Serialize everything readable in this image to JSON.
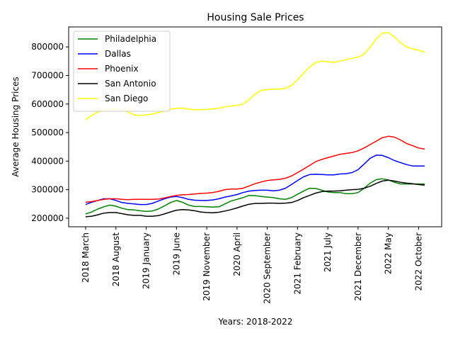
{
  "chart_data": {
    "type": "line",
    "title": "Housing Sale Prices",
    "xlabel": "Years: 2018-2022",
    "ylabel": "Average Housing Prices",
    "x": [
      "2018 March",
      "2018 April",
      "2018 May",
      "2018 June",
      "2018 July",
      "2018 August",
      "2018 September",
      "2018 October",
      "2018 November",
      "2018 December",
      "2019 January",
      "2019 February",
      "2019 March",
      "2019 April",
      "2019 May",
      "2019 June",
      "2019 July",
      "2019 August",
      "2019 September",
      "2019 October",
      "2019 November",
      "2019 December",
      "2020 January",
      "2020 February",
      "2020 March",
      "2020 April",
      "2020 May",
      "2020 June",
      "2020 July",
      "2020 August",
      "2020 September",
      "2020 October",
      "2020 November",
      "2020 December",
      "2021 January",
      "2021 February",
      "2021 March",
      "2021 April",
      "2021 May",
      "2021 June",
      "2021 July",
      "2021 August",
      "2021 September",
      "2021 October",
      "2021 November",
      "2021 December",
      "2022 January",
      "2022 February",
      "2022 March",
      "2022 April",
      "2022 May",
      "2022 June",
      "2022 July",
      "2022 August",
      "2022 September",
      "2022 October",
      "2022 November"
    ],
    "x_tick_labels": [
      "2018 March",
      "2018 August",
      "2019 January",
      "2019 June",
      "2019 November",
      "2020 April",
      "2020 September",
      "2021 February",
      "2021 July",
      "2021 December",
      "2022 May",
      "2022 October"
    ],
    "x_tick_step": 5,
    "ylim": [
      170000,
      870000
    ],
    "y_ticks": [
      200000,
      300000,
      400000,
      500000,
      600000,
      700000,
      800000
    ],
    "y_tick_labels": [
      "200000",
      "300000",
      "400000",
      "500000",
      "600000",
      "700000",
      "800000"
    ],
    "grid": false,
    "legend": "top-left",
    "series": [
      {
        "name": "Philadelphia",
        "color": "#008000",
        "values": [
          215000,
          222000,
          232000,
          240000,
          246000,
          242000,
          235000,
          230000,
          229000,
          226000,
          224000,
          225000,
          232000,
          243000,
          255000,
          262000,
          256000,
          246000,
          241000,
          241000,
          240000,
          239000,
          240000,
          250000,
          260000,
          266000,
          272000,
          280000,
          279000,
          276000,
          274000,
          272000,
          268000,
          266000,
          272000,
          284000,
          295000,
          305000,
          304000,
          298000,
          292000,
          290000,
          290000,
          286000,
          286000,
          290000,
          305000,
          323000,
          335000,
          338000,
          334000,
          326000,
          320000,
          320000,
          320000,
          320000,
          320000
        ]
      },
      {
        "name": "Dallas",
        "color": "#0000ff",
        "values": [
          248000,
          256000,
          262000,
          268000,
          268000,
          262000,
          255000,
          252000,
          250000,
          248000,
          248000,
          252000,
          260000,
          268000,
          274000,
          276000,
          272000,
          266000,
          263000,
          262000,
          262000,
          264000,
          268000,
          274000,
          278000,
          283000,
          290000,
          295000,
          297000,
          298000,
          298000,
          296000,
          298000,
          305000,
          318000,
          332000,
          345000,
          353000,
          354000,
          353000,
          352000,
          352000,
          355000,
          356000,
          360000,
          370000,
          390000,
          410000,
          421000,
          420000,
          412000,
          402000,
          395000,
          388000,
          383000,
          383000,
          383000
        ]
      },
      {
        "name": "Phoenix",
        "color": "#ff0000",
        "values": [
          256000,
          258000,
          262000,
          266000,
          268000,
          268000,
          266000,
          265000,
          266000,
          266000,
          266000,
          266000,
          267000,
          271000,
          276000,
          280000,
          282000,
          283000,
          285000,
          287000,
          288000,
          290000,
          294000,
          300000,
          302000,
          302000,
          305000,
          313000,
          321000,
          327000,
          332000,
          334000,
          336000,
          340000,
          348000,
          360000,
          372000,
          385000,
          398000,
          406000,
          412000,
          418000,
          424000,
          427000,
          430000,
          436000,
          446000,
          458000,
          470000,
          482000,
          487000,
          484000,
          474000,
          462000,
          454000,
          446000,
          442000
        ]
      },
      {
        "name": "San Antonio",
        "color": "#000000",
        "values": [
          205000,
          207000,
          212000,
          218000,
          220000,
          220000,
          216000,
          212000,
          210000,
          210000,
          207000,
          207000,
          209000,
          215000,
          222000,
          228000,
          230000,
          229000,
          226000,
          222000,
          220000,
          219000,
          221000,
          225000,
          230000,
          236000,
          243000,
          249000,
          252000,
          252000,
          253000,
          253000,
          252000,
          253000,
          255000,
          262000,
          272000,
          280000,
          288000,
          293000,
          295000,
          295000,
          296000,
          298000,
          300000,
          301000,
          305000,
          312000,
          322000,
          330000,
          333000,
          330000,
          326000,
          323000,
          321000,
          318000,
          316000
        ]
      },
      {
        "name": "San Diego",
        "color": "#ffff00",
        "values": [
          545000,
          560000,
          572000,
          578000,
          580000,
          583000,
          580000,
          572000,
          562000,
          560000,
          562000,
          565000,
          570000,
          575000,
          582000,
          585000,
          586000,
          582000,
          580000,
          580000,
          581000,
          583000,
          585000,
          590000,
          593000,
          595000,
          600000,
          615000,
          635000,
          648000,
          650000,
          652000,
          652000,
          655000,
          665000,
          685000,
          708000,
          730000,
          745000,
          750000,
          748000,
          746000,
          750000,
          755000,
          760000,
          764000,
          775000,
          800000,
          828000,
          848000,
          850000,
          835000,
          815000,
          800000,
          793000,
          788000,
          782000
        ]
      }
    ]
  }
}
